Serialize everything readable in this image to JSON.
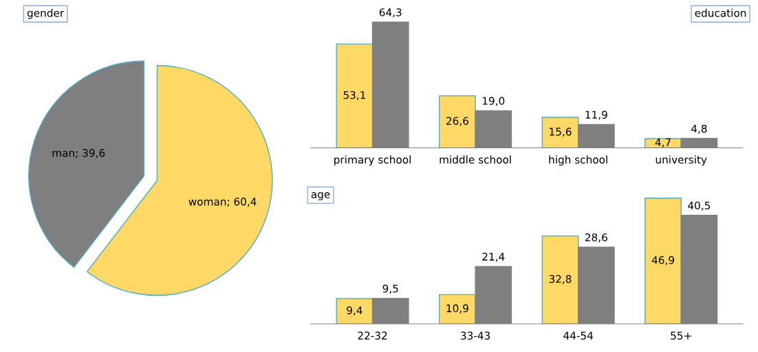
{
  "chart_data": [
    {
      "type": "pie",
      "title": "gender",
      "categories": [
        "man",
        "woman"
      ],
      "values": [
        39.6,
        60.4
      ],
      "colors": [
        "#7f7f7f",
        "#ffd966"
      ],
      "value_labels": [
        "39,6",
        "60,4"
      ],
      "data_labels": true,
      "legend": false
    },
    {
      "type": "bar",
      "title": "education",
      "categories": [
        "primary school",
        "middle school",
        "high school",
        "university"
      ],
      "series": [
        {
          "color": "#ffd966",
          "values": [
            53.1,
            26.6,
            15.6,
            4.7
          ],
          "value_labels": [
            "53,1",
            "26,6",
            "15,6",
            "4,7"
          ]
        },
        {
          "color": "#7f7f7f",
          "values": [
            64.3,
            19.0,
            11.9,
            4.8
          ],
          "value_labels": [
            "64,3",
            "19,0",
            "11,9",
            "4,8"
          ]
        }
      ],
      "data_labels": true,
      "legend": false
    },
    {
      "type": "bar",
      "title": "age",
      "categories": [
        "22-32",
        "33-43",
        "44-54",
        "55+"
      ],
      "series": [
        {
          "color": "#ffd966",
          "values": [
            9.4,
            10.9,
            32.8,
            46.9
          ],
          "value_labels": [
            "9,4",
            "10,9",
            "32,8",
            "46,9"
          ]
        },
        {
          "color": "#7f7f7f",
          "values": [
            9.5,
            21.4,
            28.6,
            40.5
          ],
          "value_labels": [
            "9,5",
            "21,4",
            "28,6",
            "40,5"
          ]
        }
      ],
      "data_labels": true,
      "legend": false
    }
  ]
}
